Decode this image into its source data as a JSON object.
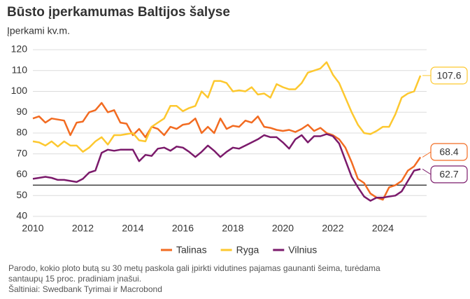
{
  "chart_data": {
    "type": "line",
    "title": "Būsto įperkamumas Baltijos šalyse",
    "subtitle": "Įperkami kv.m.",
    "x": [
      2010,
      2010.25,
      2010.5,
      2010.75,
      2011,
      2011.25,
      2011.5,
      2011.75,
      2012,
      2012.25,
      2012.5,
      2012.75,
      2013,
      2013.25,
      2013.5,
      2013.75,
      2014,
      2014.25,
      2014.5,
      2014.75,
      2015,
      2015.25,
      2015.5,
      2015.75,
      2016,
      2016.25,
      2016.5,
      2016.75,
      2017,
      2017.25,
      2017.5,
      2017.75,
      2018,
      2018.25,
      2018.5,
      2018.75,
      2019,
      2019.25,
      2019.5,
      2019.75,
      2020,
      2020.25,
      2020.5,
      2020.75,
      2021,
      2021.25,
      2021.5,
      2021.75,
      2022,
      2022.25,
      2022.5,
      2022.75,
      2023,
      2023.25,
      2023.5,
      2023.75,
      2024,
      2024.25,
      2024.5,
      2024.75,
      2025,
      2025.25,
      2025.5
    ],
    "series": [
      {
        "name": "Talinas",
        "color": "#f26b21",
        "values": [
          87,
          88,
          85,
          87,
          86.5,
          86,
          79,
          85,
          85.5,
          90,
          91,
          94.5,
          90,
          91,
          85,
          84.5,
          79,
          82,
          78,
          83,
          82,
          79,
          83,
          82,
          84,
          84.5,
          87,
          80,
          83,
          80,
          87,
          82,
          83.5,
          83,
          86,
          85,
          88,
          83,
          82.5,
          81.5,
          81,
          81.5,
          80.5,
          82,
          84,
          81,
          82.5,
          80,
          79,
          77,
          73,
          66,
          58,
          56,
          51,
          49,
          48,
          54,
          55,
          57,
          62,
          64,
          68.4
        ]
      },
      {
        "name": "Ryga",
        "color": "#fdc82f",
        "values": [
          76,
          75.5,
          74,
          76,
          73.5,
          76,
          74,
          74,
          71,
          73,
          76,
          78,
          74.5,
          79,
          79,
          79.5,
          80,
          76.5,
          76,
          83,
          85,
          87,
          93,
          93,
          90.5,
          92,
          93,
          100,
          97,
          105,
          105,
          104,
          100,
          100.5,
          100,
          102,
          98.5,
          99,
          97,
          103.5,
          102,
          101,
          101,
          104,
          109,
          110,
          111,
          114,
          108,
          104,
          97,
          90,
          84,
          80,
          79.5,
          81,
          83,
          83,
          89,
          97,
          99,
          100,
          107.6
        ]
      },
      {
        "name": "Vilnius",
        "color": "#7b1a6b",
        "values": [
          58,
          58.5,
          59,
          58.5,
          57.5,
          57.5,
          57,
          56.5,
          58,
          61,
          62,
          70.5,
          72,
          71.5,
          72,
          72,
          72,
          66.5,
          69.5,
          69,
          72.5,
          73,
          71.5,
          73.5,
          73,
          71,
          68.5,
          71,
          74,
          71.5,
          68.5,
          71,
          73,
          72.5,
          74,
          75.5,
          77,
          79,
          78,
          78,
          75.5,
          72.5,
          77,
          79,
          75.5,
          78.5,
          78.5,
          79.5,
          78.5,
          75,
          67,
          59,
          54,
          49.5,
          47.5,
          49,
          49,
          49.5,
          50,
          52,
          57,
          62,
          62.7
        ]
      }
    ],
    "xlim": [
      2010,
      2025.75
    ],
    "xticks": [
      2010,
      2012,
      2014,
      2016,
      2018,
      2020,
      2022,
      2024
    ],
    "ylim": [
      40,
      120
    ],
    "yticks": [
      40,
      50,
      60,
      70,
      80,
      90,
      100,
      110,
      120
    ],
    "reference_line": 55,
    "grid": true,
    "legend": "bottom",
    "notes": [
      "Parodo, kokio ploto butą su 30 metų paskola gali įpirkti vidutines pajamas gaunanti šeima, turėdama",
      "santaupų 15 proc. pradiniam įnašui."
    ],
    "source": "Šaltiniai: Swedbank Tyrimai ir Macrobond"
  }
}
